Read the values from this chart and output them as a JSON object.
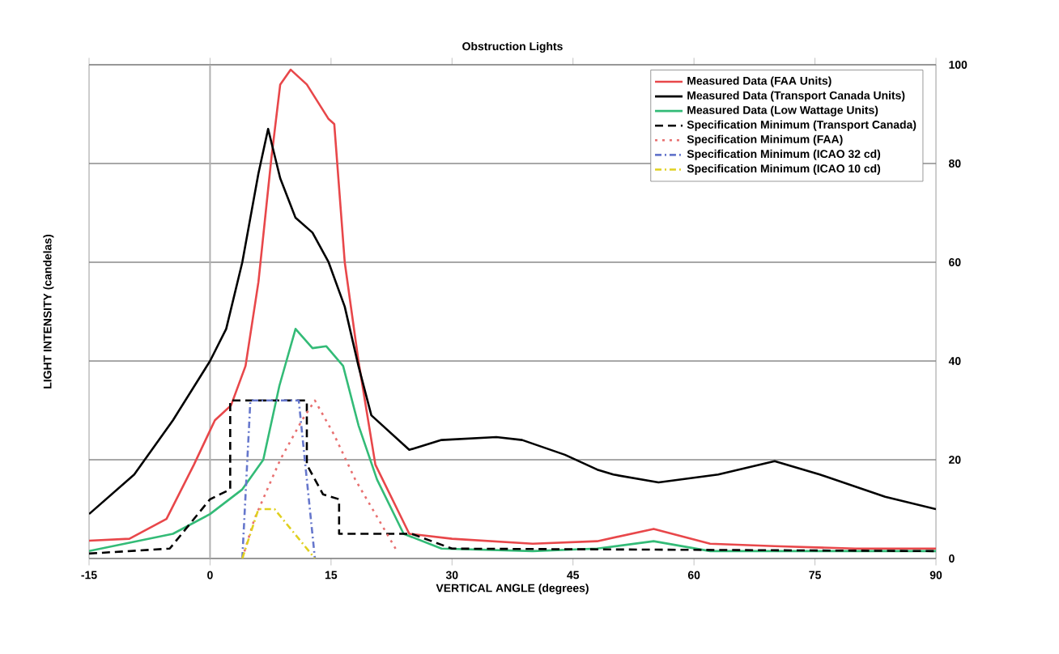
{
  "chart_data": {
    "type": "line",
    "title": "Obstruction Lights",
    "xlabel": "VERTICAL ANGLE (degrees)",
    "ylabel": "LIGHT INTENSITY (candelas)",
    "xlim": [
      -15,
      90
    ],
    "xticks": [
      -15,
      0,
      15,
      30,
      45,
      60,
      75,
      90
    ],
    "ylim": [
      0,
      100
    ],
    "yticks": [
      0,
      20,
      40,
      60,
      80,
      100
    ],
    "grid": "y",
    "legend": "top right",
    "ref_lines": [
      {
        "axis": "x",
        "value": 0,
        "color": "#b0b0b0"
      }
    ],
    "series": [
      {
        "name": "Measured Data (FAA Units)",
        "color": "#e8474a",
        "line_style": "solid",
        "x": [
          -15,
          -10,
          -5.4,
          -2,
          0.6,
          2.6,
          4.4,
          6,
          7.6,
          8.7,
          10,
          12,
          14.7,
          15.4,
          16.7,
          18.4,
          20.5,
          24.7,
          30,
          40,
          48,
          55,
          62,
          70,
          80,
          90
        ],
        "values": [
          3.6,
          4,
          8,
          19,
          28,
          31,
          39,
          56,
          81,
          96,
          99,
          96,
          89,
          88,
          60,
          40,
          19,
          5,
          4,
          3,
          3.5,
          6,
          3,
          2.5,
          2,
          2
        ]
      },
      {
        "name": "Measured Data (Transport Canada Units)",
        "color": "#000000",
        "line_style": "solid",
        "x": [
          -15,
          -9.4,
          -4.6,
          0,
          2,
          4,
          6,
          7.2,
          8.7,
          10.6,
          12.7,
          14.7,
          16.7,
          18.4,
          20,
          24.7,
          28.7,
          35.5,
          38.7,
          44,
          48,
          50,
          55.6,
          63,
          70,
          75.6,
          83.7,
          90
        ],
        "values": [
          9,
          17,
          28,
          40,
          46.5,
          60,
          78,
          87,
          77,
          69,
          66,
          60,
          51,
          39,
          29,
          22,
          24,
          24.6,
          24,
          21,
          18,
          17,
          15.4,
          17,
          19.7,
          17,
          12.5,
          10
        ]
      },
      {
        "name": "Measured Data (Low Wattage Units)",
        "color": "#33bb77",
        "line_style": "solid",
        "x": [
          -15,
          -4.6,
          0,
          4,
          6.6,
          8.6,
          10.6,
          12.7,
          14.4,
          16.5,
          18.4,
          20.7,
          24,
          28.7,
          40,
          48,
          55,
          62,
          75,
          90
        ],
        "values": [
          1.5,
          5,
          9,
          14,
          20,
          35,
          46.5,
          42.6,
          43,
          39,
          27,
          16,
          5,
          2,
          1.5,
          2,
          3.5,
          1.5,
          1.5,
          1.5
        ]
      },
      {
        "name": "Specification Minimum (Transport Canada)",
        "color": "#000000",
        "line_style": "dashed",
        "x": [
          -15,
          -5,
          -3,
          0,
          2.5,
          2.5,
          12,
          12,
          14,
          16,
          16,
          25,
          30,
          90
        ],
        "values": [
          1,
          2,
          6,
          12,
          14,
          32,
          32,
          19,
          13,
          12,
          5,
          5,
          2,
          1.5
        ]
      },
      {
        "name": "Specification Minimum (FAA)",
        "color": "#e87070",
        "line_style": "dotted",
        "x": [
          4,
          5.5,
          8.7,
          11.4,
          13,
          15.4,
          18,
          20.5,
          23
        ],
        "values": [
          0,
          8,
          20,
          28,
          32,
          25,
          16,
          9,
          2
        ]
      },
      {
        "name": "Specification Minimum (ICAO 32 cd)",
        "color": "#6677cc",
        "line_style": "dashdot",
        "x": [
          4,
          5,
          11,
          13
        ],
        "values": [
          0,
          32,
          32,
          0
        ]
      },
      {
        "name": "Specification Minimum (ICAO 10 cd)",
        "color": "#e0d020",
        "line_style": "dashdot",
        "x": [
          4,
          6,
          8,
          13
        ],
        "values": [
          0,
          10,
          10,
          0
        ]
      }
    ]
  }
}
